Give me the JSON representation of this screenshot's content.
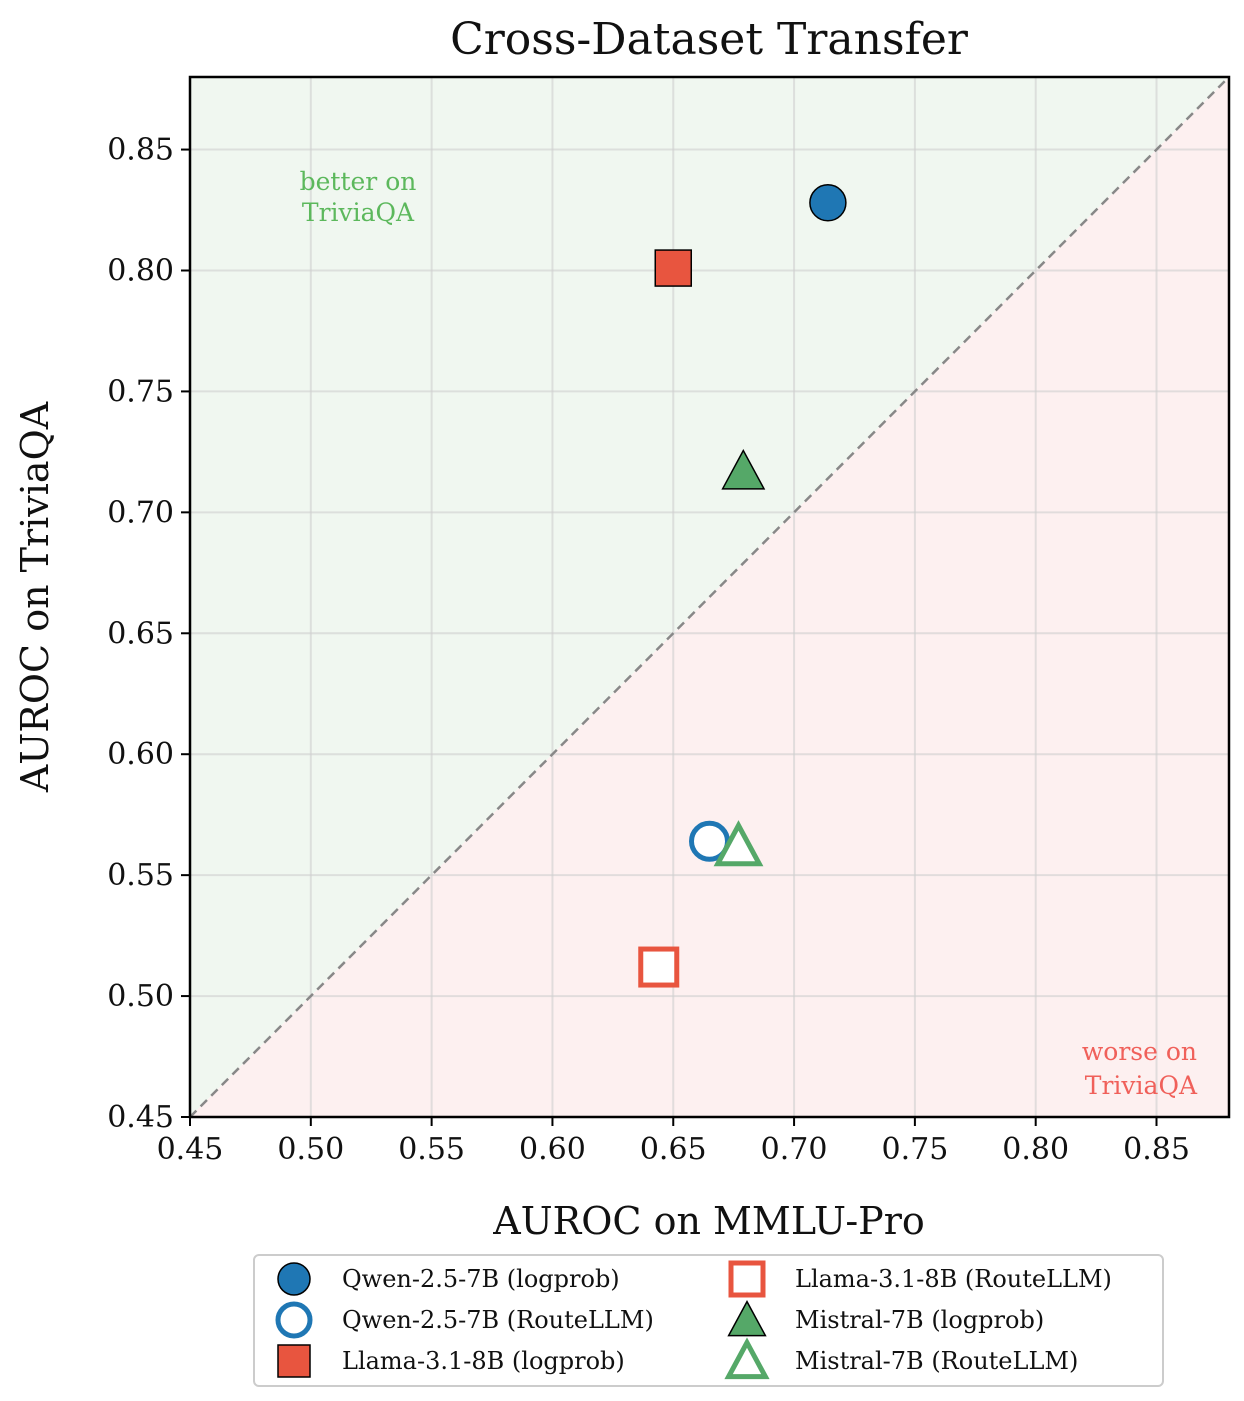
{
  "colors": {
    "blue": "#1f77b4",
    "red": "#e8553f",
    "green": "#55a868",
    "better_region": "#f0f7f0",
    "worse_region": "#fdf0f0",
    "diagonal": "#888888"
  },
  "chart_data": {
    "type": "scatter",
    "title": "Cross-Dataset Transfer",
    "xlabel": "AUROC on MMLU-Pro",
    "ylabel": "AUROC on TriviaQA",
    "xlim": [
      0.45,
      0.88
    ],
    "ylim": [
      0.45,
      0.88
    ],
    "xticks": [
      "0.45",
      "0.50",
      "0.55",
      "0.60",
      "0.65",
      "0.70",
      "0.75",
      "0.80",
      "0.85"
    ],
    "yticks": [
      "0.45",
      "0.50",
      "0.55",
      "0.60",
      "0.65",
      "0.70",
      "0.75",
      "0.80",
      "0.85"
    ],
    "grid": true,
    "reference_line": "y = x",
    "legend_position": "bottom",
    "annotations": {
      "better": [
        "better on",
        "TriviaQA"
      ],
      "worse": [
        "worse on",
        "TriviaQA"
      ]
    },
    "series": [
      {
        "name": "Qwen-2.5-7B (logprob)",
        "marker": "circle",
        "filled": true,
        "color": "#1f77b4",
        "x": 0.714,
        "y": 0.828
      },
      {
        "name": "Qwen-2.5-7B (RouteLLM)",
        "marker": "circle",
        "filled": false,
        "color": "#1f77b4",
        "x": 0.665,
        "y": 0.564
      },
      {
        "name": "Llama-3.1-8B (logprob)",
        "marker": "square",
        "filled": true,
        "color": "#e8553f",
        "x": 0.65,
        "y": 0.801
      },
      {
        "name": "Llama-3.1-8B (RouteLLM)",
        "marker": "square",
        "filled": false,
        "color": "#e8553f",
        "x": 0.644,
        "y": 0.512
      },
      {
        "name": "Mistral-7B (logprob)",
        "marker": "triangle",
        "filled": true,
        "color": "#55a868",
        "x": 0.679,
        "y": 0.717
      },
      {
        "name": "Mistral-7B (RouteLLM)",
        "marker": "triangle",
        "filled": false,
        "color": "#55a868",
        "x": 0.677,
        "y": 0.562
      }
    ]
  }
}
